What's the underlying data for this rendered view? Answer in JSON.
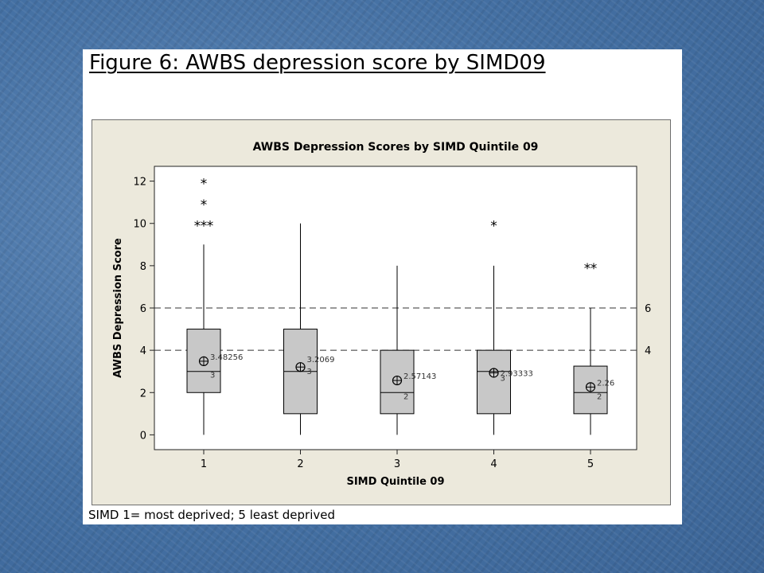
{
  "slide": {
    "title": "Figure 6: AWBS depression score by SIMD09",
    "caption": "SIMD 1= most deprived; 5 least deprived"
  },
  "colors": {
    "slide_background": "#4a74a6",
    "chart_background": "#ece9dc",
    "plot_background": "#ffffff",
    "box_fill": "#c8c8c8"
  },
  "chart_data": {
    "type": "boxplot",
    "title": "AWBS Depression Scores by SIMD Quintile 09",
    "xlabel": "SIMD Quintile 09",
    "ylabel": "AWBS Depression Score",
    "categories": [
      "1",
      "2",
      "3",
      "4",
      "5"
    ],
    "ylim": [
      -0.7,
      12.7
    ],
    "yticks": [
      0,
      2,
      4,
      6,
      8,
      10,
      12
    ],
    "grid": false,
    "reference_lines": [
      {
        "y": 6,
        "label": "6",
        "style": "dashed"
      },
      {
        "y": 4,
        "label": "4",
        "style": "dashed"
      }
    ],
    "boxes": [
      {
        "category": "1",
        "whisker_low": 0,
        "q1": 2,
        "median": 3,
        "q3": 5,
        "whisker_high": 9,
        "mean": 3.48256,
        "mean_label": "3.48256",
        "median_label": "3",
        "outliers": [
          10,
          10,
          10,
          11,
          12
        ]
      },
      {
        "category": "2",
        "whisker_low": 0,
        "q1": 1,
        "median": 3,
        "q3": 5,
        "whisker_high": 10,
        "mean": 3.2069,
        "mean_label": "3.2069",
        "median_label": "3",
        "outliers": []
      },
      {
        "category": "3",
        "whisker_low": 0,
        "q1": 1,
        "median": 2,
        "q3": 4,
        "whisker_high": 8,
        "mean": 2.57143,
        "mean_label": "2.57143",
        "median_label": "2",
        "outliers": []
      },
      {
        "category": "4",
        "whisker_low": 0,
        "q1": 1,
        "median": 3,
        "q3": 4,
        "whisker_high": 8,
        "mean": 2.93333,
        "mean_label": "2.93333",
        "median_label": "3",
        "outliers": [
          10
        ]
      },
      {
        "category": "5",
        "whisker_low": 0,
        "q1": 1,
        "median": 2,
        "q3": 3.25,
        "whisker_high": 6,
        "mean": 2.26,
        "mean_label": "2.26",
        "median_label": "2",
        "outliers": [
          8,
          8
        ]
      }
    ]
  }
}
